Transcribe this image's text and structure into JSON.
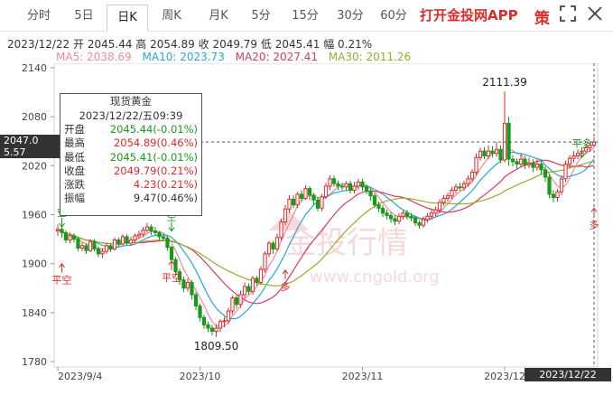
{
  "tabs": [
    {
      "label": "分时",
      "active": false
    },
    {
      "label": "5日",
      "active": false
    },
    {
      "label": "日K",
      "active": true
    },
    {
      "label": "周K",
      "active": false
    },
    {
      "label": "月K",
      "active": false
    },
    {
      "label": "5分",
      "active": false
    },
    {
      "label": "15分",
      "active": false
    },
    {
      "label": "30分",
      "active": false
    },
    {
      "label": "60分",
      "active": false
    }
  ],
  "brand": "打开金投网APP",
  "icons": {
    "strategy": "策",
    "fullscreen": "fullscreen-icon",
    "close": "close-icon"
  },
  "info": {
    "date": "2023/12/22",
    "open_label": "开",
    "open": "2045.44",
    "high_label": "高",
    "high": "2054.89",
    "close_label": "收",
    "close": "2049.79",
    "low_label": "低",
    "low": "2045.41",
    "change_label": "幅",
    "change": "0.21%"
  },
  "ma": [
    {
      "label": "MA5: 2038.69",
      "color": "#f08aa0"
    },
    {
      "label": "MA10: 2023.73",
      "color": "#2aa7d8"
    },
    {
      "label": "MA20: 2027.41",
      "color": "#d83a6a"
    },
    {
      "label": "MA30: 2011.26",
      "color": "#9aaa2a"
    }
  ],
  "tooltip": {
    "title": "现货黄金",
    "datetime": "2023/12/22/五09:39",
    "rows": [
      {
        "k": "开盘",
        "v": "2045.44(-0.01%)",
        "c": "#1a9a1a"
      },
      {
        "k": "最高",
        "v": "2054.89(0.46%)",
        "c": "#e02b2b"
      },
      {
        "k": "最低",
        "v": "2045.41(-0.01%)",
        "c": "#1a9a1a"
      },
      {
        "k": "收盘",
        "v": "2049.79(0.21%)",
        "c": "#e02b2b"
      },
      {
        "k": "涨跌",
        "v": "4.23(0.21%)",
        "c": "#e02b2b"
      },
      {
        "k": "振幅",
        "v": "9.47(0.46%)",
        "c": "#333"
      }
    ]
  },
  "price_flag": {
    "line1": "2047.0",
    "line2": "5.57"
  },
  "time_flag": "2023/12/22 09:39",
  "watermark": {
    "cn": "金投行情",
    "url": "www.cngold.org"
  },
  "chart_data": {
    "type": "candlestick",
    "y_ticks": [
      2140,
      2080,
      2020,
      1960,
      1900,
      1840,
      1780
    ],
    "ylim": [
      1775,
      2150
    ],
    "x_ticks": [
      "2023/9/4",
      "2023/10",
      "2023/11",
      "2023/12"
    ],
    "annotations": [
      {
        "text": "2111.39",
        "kind": "high"
      },
      {
        "text": "1809.50",
        "kind": "low"
      }
    ],
    "signals": [
      {
        "text": "空",
        "type": "sell",
        "index": 1,
        "price": 1945
      },
      {
        "text": "平空",
        "type": "cover",
        "index": 1,
        "price": 1900
      },
      {
        "text": "空",
        "type": "sell",
        "index": 28,
        "price": 1940
      },
      {
        "text": "平空",
        "type": "cover",
        "index": 28,
        "price": 1903
      },
      {
        "text": "多",
        "type": "buy",
        "index": 56,
        "price": 1892
      },
      {
        "text": "平多",
        "type": "exit",
        "index": 129,
        "price": 2030
      },
      {
        "text": "多",
        "type": "buy",
        "index": 132,
        "price": 1968
      }
    ],
    "candles": [
      [
        1940,
        1942,
        1948,
        1934
      ],
      [
        1942,
        1938,
        1946,
        1932
      ],
      [
        1938,
        1929,
        1941,
        1925
      ],
      [
        1929,
        1934,
        1938,
        1925
      ],
      [
        1934,
        1930,
        1937,
        1926
      ],
      [
        1930,
        1919,
        1933,
        1915
      ],
      [
        1919,
        1922,
        1926,
        1915
      ],
      [
        1922,
        1916,
        1925,
        1912
      ],
      [
        1916,
        1927,
        1930,
        1914
      ],
      [
        1927,
        1918,
        1930,
        1915
      ],
      [
        1918,
        1912,
        1921,
        1908
      ],
      [
        1912,
        1915,
        1919,
        1907
      ],
      [
        1915,
        1922,
        1925,
        1912
      ],
      [
        1922,
        1918,
        1925,
        1914
      ],
      [
        1918,
        1929,
        1932,
        1916
      ],
      [
        1929,
        1924,
        1932,
        1921
      ],
      [
        1924,
        1933,
        1936,
        1922
      ],
      [
        1933,
        1925,
        1936,
        1922
      ],
      [
        1925,
        1929,
        1933,
        1922
      ],
      [
        1929,
        1934,
        1937,
        1926
      ],
      [
        1934,
        1936,
        1940,
        1930
      ],
      [
        1936,
        1941,
        1945,
        1933
      ],
      [
        1941,
        1945,
        1950,
        1938
      ],
      [
        1945,
        1940,
        1948,
        1935
      ],
      [
        1940,
        1938,
        1945,
        1934
      ],
      [
        1938,
        1933,
        1940,
        1929
      ],
      [
        1933,
        1931,
        1937,
        1928
      ],
      [
        1931,
        1920,
        1934,
        1916
      ],
      [
        1920,
        1905,
        1922,
        1900
      ],
      [
        1905,
        1890,
        1908,
        1885
      ],
      [
        1890,
        1880,
        1894,
        1874
      ],
      [
        1880,
        1870,
        1884,
        1865
      ],
      [
        1870,
        1877,
        1882,
        1866
      ],
      [
        1877,
        1862,
        1880,
        1856
      ],
      [
        1862,
        1848,
        1865,
        1843
      ],
      [
        1848,
        1834,
        1851,
        1829
      ],
      [
        1834,
        1825,
        1837,
        1820
      ],
      [
        1825,
        1821,
        1829,
        1816
      ],
      [
        1821,
        1817,
        1825,
        1812
      ],
      [
        1817,
        1821,
        1826,
        1810
      ],
      [
        1821,
        1829,
        1832,
        1816
      ],
      [
        1829,
        1830,
        1835,
        1822
      ],
      [
        1830,
        1842,
        1846,
        1826
      ],
      [
        1842,
        1858,
        1861,
        1838
      ],
      [
        1858,
        1850,
        1861,
        1845
      ],
      [
        1850,
        1862,
        1867,
        1846
      ],
      [
        1862,
        1872,
        1877,
        1858
      ],
      [
        1872,
        1866,
        1876,
        1862
      ],
      [
        1866,
        1882,
        1885,
        1862
      ],
      [
        1882,
        1877,
        1885,
        1873
      ],
      [
        1877,
        1893,
        1897,
        1874
      ],
      [
        1893,
        1912,
        1915,
        1889
      ],
      [
        1912,
        1925,
        1928,
        1908
      ],
      [
        1925,
        1918,
        1928,
        1912
      ],
      [
        1918,
        1932,
        1937,
        1915
      ],
      [
        1932,
        1951,
        1955,
        1928
      ],
      [
        1951,
        1967,
        1972,
        1947
      ],
      [
        1967,
        1979,
        1984,
        1962
      ],
      [
        1979,
        1972,
        1984,
        1968
      ],
      [
        1972,
        1985,
        1988,
        1968
      ],
      [
        1985,
        1980,
        1990,
        1976
      ],
      [
        1980,
        1992,
        1996,
        1978
      ],
      [
        1992,
        1984,
        1995,
        1978
      ],
      [
        1984,
        1978,
        1987,
        1972
      ],
      [
        1978,
        1968,
        1982,
        1964
      ],
      [
        1968,
        1982,
        1985,
        1964
      ],
      [
        1982,
        1995,
        1999,
        1979
      ],
      [
        1995,
        2004,
        2008,
        1990
      ],
      [
        2004,
        1998,
        2008,
        1994
      ],
      [
        1998,
        1995,
        2002,
        1990
      ],
      [
        1995,
        1994,
        1999,
        1990
      ],
      [
        1994,
        1998,
        2001,
        1990
      ],
      [
        1998,
        1990,
        2002,
        1986
      ],
      [
        1990,
        1995,
        2000,
        1986
      ],
      [
        1995,
        2000,
        2004,
        1990
      ],
      [
        2000,
        1994,
        2004,
        1989
      ],
      [
        1994,
        1989,
        1997,
        1985
      ],
      [
        1989,
        1983,
        1992,
        1977
      ],
      [
        1983,
        1972,
        1986,
        1968
      ],
      [
        1972,
        1968,
        1976,
        1963
      ],
      [
        1968,
        1962,
        1972,
        1957
      ],
      [
        1962,
        1959,
        1966,
        1954
      ],
      [
        1959,
        1955,
        1963,
        1950
      ],
      [
        1955,
        1952,
        1959,
        1947
      ],
      [
        1952,
        1958,
        1962,
        1948
      ],
      [
        1958,
        1962,
        1966,
        1954
      ],
      [
        1962,
        1958,
        1966,
        1954
      ],
      [
        1958,
        1956,
        1962,
        1952
      ],
      [
        1956,
        1950,
        1959,
        1946
      ],
      [
        1950,
        1947,
        1953,
        1943
      ],
      [
        1947,
        1954,
        1958,
        1944
      ],
      [
        1954,
        1958,
        1962,
        1950
      ],
      [
        1958,
        1962,
        1967,
        1955
      ],
      [
        1962,
        1966,
        1970,
        1958
      ],
      [
        1966,
        1975,
        1979,
        1962
      ],
      [
        1975,
        1980,
        1984,
        1971
      ],
      [
        1980,
        1983,
        1987,
        1976
      ],
      [
        1983,
        1990,
        1994,
        1979
      ],
      [
        1990,
        1994,
        1998,
        1986
      ],
      [
        1994,
        1993,
        1999,
        1989
      ],
      [
        1993,
        1998,
        2002,
        1989
      ],
      [
        1998,
        2004,
        2008,
        1994
      ],
      [
        2004,
        2012,
        2016,
        2000
      ],
      [
        2012,
        2030,
        2035,
        2008
      ],
      [
        2030,
        2038,
        2042,
        2026
      ],
      [
        2038,
        2032,
        2043,
        2028
      ],
      [
        2032,
        2038,
        2045,
        2028
      ],
      [
        2038,
        2035,
        2044,
        2030
      ],
      [
        2035,
        2040,
        2049,
        2031
      ],
      [
        2040,
        2027,
        2045,
        2023
      ],
      [
        2027,
        2072,
        2111,
        2024
      ],
      [
        2072,
        2028,
        2080,
        2020
      ],
      [
        2028,
        2025,
        2033,
        2019
      ],
      [
        2025,
        2022,
        2029,
        2016
      ],
      [
        2022,
        2028,
        2034,
        2018
      ],
      [
        2028,
        2021,
        2032,
        2016
      ],
      [
        2021,
        2023,
        2030,
        2017
      ],
      [
        2023,
        2018,
        2028,
        2012
      ],
      [
        2018,
        2022,
        2028,
        2014
      ],
      [
        2022,
        2015,
        2026,
        2009
      ],
      [
        2015,
        2006,
        2019,
        2000
      ],
      [
        2006,
        1985,
        2010,
        1980
      ],
      [
        1985,
        1981,
        1990,
        1975
      ],
      [
        1981,
        1988,
        1992,
        1976
      ],
      [
        1988,
        2004,
        2008,
        1984
      ],
      [
        2004,
        2022,
        2026,
        2000
      ],
      [
        2022,
        2029,
        2033,
        2017
      ],
      [
        2029,
        2032,
        2038,
        2024
      ],
      [
        2032,
        2035,
        2040,
        2028
      ],
      [
        2035,
        2038,
        2043,
        2030
      ],
      [
        2038,
        2042,
        2047,
        2034
      ],
      [
        2042,
        2045,
        2050,
        2037
      ],
      [
        2045,
        2049,
        2055,
        2045
      ]
    ]
  }
}
